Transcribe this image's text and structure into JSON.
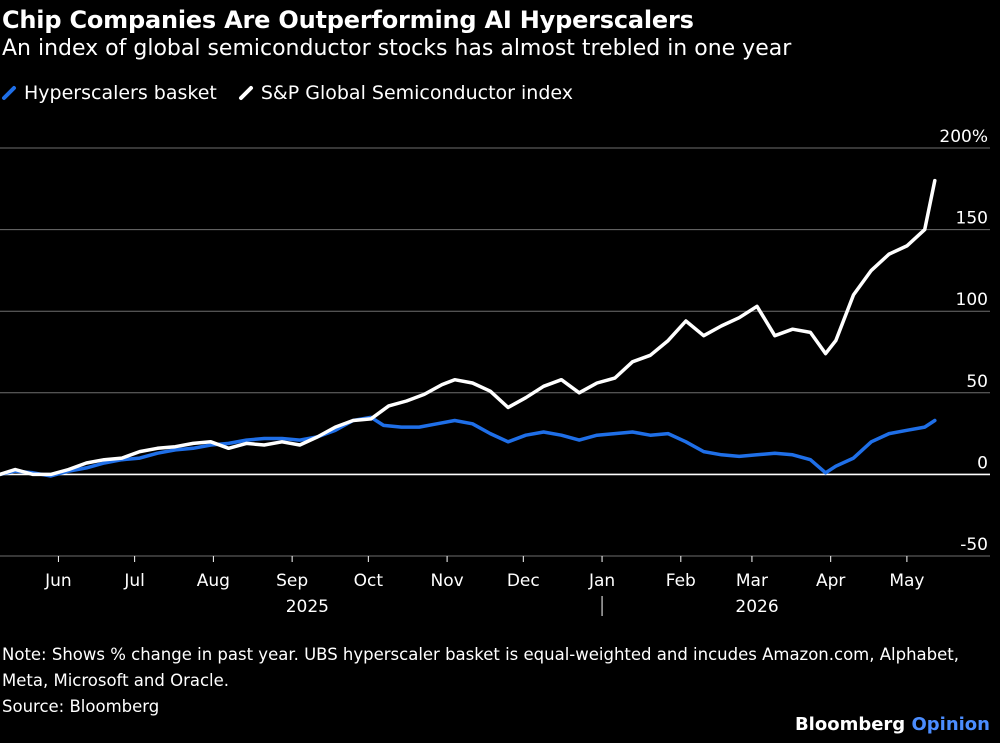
{
  "header": {
    "title": "Chip Companies Are Outperforming AI Hyperscalers",
    "subtitle": "An index of global semiconductor stocks has almost trebled in one year"
  },
  "colors": {
    "background": "#000000",
    "grid": "#6e6e6e",
    "hyperscalers": "#1f6fe8",
    "semiconductor": "#ffffff",
    "brand_accent": "#4b8dff"
  },
  "footer": {
    "note": "Note: Shows % change in past year. UBS hyperscaler basket is equal-weighted and incudes Amazon.com, Alphabet, Meta, Microsoft and Oracle.",
    "source": "Source: Bloomberg",
    "brand_name": "Bloomberg",
    "brand_suffix": "Opinion"
  },
  "chart_data": {
    "type": "line",
    "ylim": [
      -50,
      200
    ],
    "yticks": [
      {
        "value": 200,
        "label": "200%"
      },
      {
        "value": 150,
        "label": "150"
      },
      {
        "value": 100,
        "label": "100"
      },
      {
        "value": 50,
        "label": "50"
      },
      {
        "value": 0,
        "label": "0"
      },
      {
        "value": -50,
        "label": "-50"
      }
    ],
    "xlim": [
      "2025-05-09",
      "2026-05-16"
    ],
    "xticks": [
      {
        "date": "2025-06-01",
        "label": "Jun"
      },
      {
        "date": "2025-07-01",
        "label": "Jul"
      },
      {
        "date": "2025-08-01",
        "label": "Aug"
      },
      {
        "date": "2025-09-01",
        "label": "Sep"
      },
      {
        "date": "2025-10-01",
        "label": "Oct"
      },
      {
        "date": "2025-11-01",
        "label": "Nov"
      },
      {
        "date": "2025-12-01",
        "label": "Dec"
      },
      {
        "date": "2026-01-01",
        "label": "Jan"
      },
      {
        "date": "2026-02-01",
        "label": "Feb"
      },
      {
        "date": "2026-03-01",
        "label": "Mar"
      },
      {
        "date": "2026-04-01",
        "label": "Apr"
      },
      {
        "date": "2026-05-01",
        "label": "May"
      }
    ],
    "year_labels": [
      {
        "date": "2025-09-07",
        "label": "2025"
      },
      {
        "date": "2026-03-03",
        "label": "2026"
      }
    ],
    "year_divider": "2026-01-01",
    "legend_position": "top-left",
    "grid": true,
    "series": [
      {
        "name": "Hyperscalers basket",
        "color": "#1f6fe8",
        "points": [
          [
            "2025-05-09",
            0
          ],
          [
            "2025-05-15",
            2
          ],
          [
            "2025-05-22",
            1
          ],
          [
            "2025-05-29",
            -1
          ],
          [
            "2025-06-05",
            2
          ],
          [
            "2025-06-12",
            4
          ],
          [
            "2025-06-19",
            7
          ],
          [
            "2025-06-26",
            9
          ],
          [
            "2025-07-03",
            10
          ],
          [
            "2025-07-10",
            13
          ],
          [
            "2025-07-17",
            15
          ],
          [
            "2025-07-24",
            16
          ],
          [
            "2025-07-31",
            18
          ],
          [
            "2025-08-07",
            19
          ],
          [
            "2025-08-14",
            21
          ],
          [
            "2025-08-21",
            22
          ],
          [
            "2025-08-28",
            22
          ],
          [
            "2025-09-04",
            21
          ],
          [
            "2025-09-11",
            23
          ],
          [
            "2025-09-18",
            27
          ],
          [
            "2025-09-25",
            33
          ],
          [
            "2025-10-02",
            35
          ],
          [
            "2025-10-07",
            30
          ],
          [
            "2025-10-14",
            29
          ],
          [
            "2025-10-21",
            29
          ],
          [
            "2025-10-28",
            31
          ],
          [
            "2025-11-04",
            33
          ],
          [
            "2025-11-11",
            31
          ],
          [
            "2025-11-18",
            25
          ],
          [
            "2025-11-25",
            20
          ],
          [
            "2025-12-02",
            24
          ],
          [
            "2025-12-09",
            26
          ],
          [
            "2025-12-16",
            24
          ],
          [
            "2025-12-23",
            21
          ],
          [
            "2025-12-30",
            24
          ],
          [
            "2026-01-06",
            25
          ],
          [
            "2026-01-13",
            26
          ],
          [
            "2026-01-20",
            24
          ],
          [
            "2026-01-27",
            25
          ],
          [
            "2026-02-03",
            20
          ],
          [
            "2026-02-10",
            14
          ],
          [
            "2026-02-17",
            12
          ],
          [
            "2026-02-24",
            11
          ],
          [
            "2026-03-03",
            12
          ],
          [
            "2026-03-10",
            13
          ],
          [
            "2026-03-17",
            12
          ],
          [
            "2026-03-24",
            9
          ],
          [
            "2026-03-30",
            1
          ],
          [
            "2026-04-03",
            5
          ],
          [
            "2026-04-10",
            10
          ],
          [
            "2026-04-17",
            20
          ],
          [
            "2026-04-24",
            25
          ],
          [
            "2026-05-01",
            27
          ],
          [
            "2026-05-08",
            29
          ],
          [
            "2026-05-12",
            33
          ]
        ]
      },
      {
        "name": "S&P Global Semiconductor index",
        "color": "#ffffff",
        "points": [
          [
            "2025-05-09",
            0
          ],
          [
            "2025-05-15",
            3
          ],
          [
            "2025-05-22",
            0
          ],
          [
            "2025-05-29",
            0
          ],
          [
            "2025-06-05",
            3
          ],
          [
            "2025-06-12",
            7
          ],
          [
            "2025-06-19",
            9
          ],
          [
            "2025-06-26",
            10
          ],
          [
            "2025-07-03",
            14
          ],
          [
            "2025-07-10",
            16
          ],
          [
            "2025-07-17",
            17
          ],
          [
            "2025-07-24",
            19
          ],
          [
            "2025-07-31",
            20
          ],
          [
            "2025-08-07",
            16
          ],
          [
            "2025-08-14",
            19
          ],
          [
            "2025-08-21",
            18
          ],
          [
            "2025-08-28",
            20
          ],
          [
            "2025-09-04",
            18
          ],
          [
            "2025-09-11",
            23
          ],
          [
            "2025-09-18",
            29
          ],
          [
            "2025-09-25",
            33
          ],
          [
            "2025-10-02",
            34
          ],
          [
            "2025-10-09",
            42
          ],
          [
            "2025-10-16",
            45
          ],
          [
            "2025-10-23",
            49
          ],
          [
            "2025-10-30",
            55
          ],
          [
            "2025-11-04",
            58
          ],
          [
            "2025-11-11",
            56
          ],
          [
            "2025-11-18",
            51
          ],
          [
            "2025-11-25",
            41
          ],
          [
            "2025-12-02",
            47
          ],
          [
            "2025-12-09",
            54
          ],
          [
            "2025-12-16",
            58
          ],
          [
            "2025-12-23",
            50
          ],
          [
            "2025-12-30",
            56
          ],
          [
            "2026-01-06",
            59
          ],
          [
            "2026-01-13",
            69
          ],
          [
            "2026-01-20",
            73
          ],
          [
            "2026-01-27",
            82
          ],
          [
            "2026-02-03",
            94
          ],
          [
            "2026-02-10",
            85
          ],
          [
            "2026-02-17",
            91
          ],
          [
            "2026-02-24",
            96
          ],
          [
            "2026-03-03",
            103
          ],
          [
            "2026-03-10",
            85
          ],
          [
            "2026-03-17",
            89
          ],
          [
            "2026-03-24",
            87
          ],
          [
            "2026-03-30",
            74
          ],
          [
            "2026-04-03",
            82
          ],
          [
            "2026-04-10",
            110
          ],
          [
            "2026-04-17",
            125
          ],
          [
            "2026-04-24",
            135
          ],
          [
            "2026-05-01",
            140
          ],
          [
            "2026-05-08",
            150
          ],
          [
            "2026-05-12",
            180
          ]
        ]
      }
    ]
  }
}
